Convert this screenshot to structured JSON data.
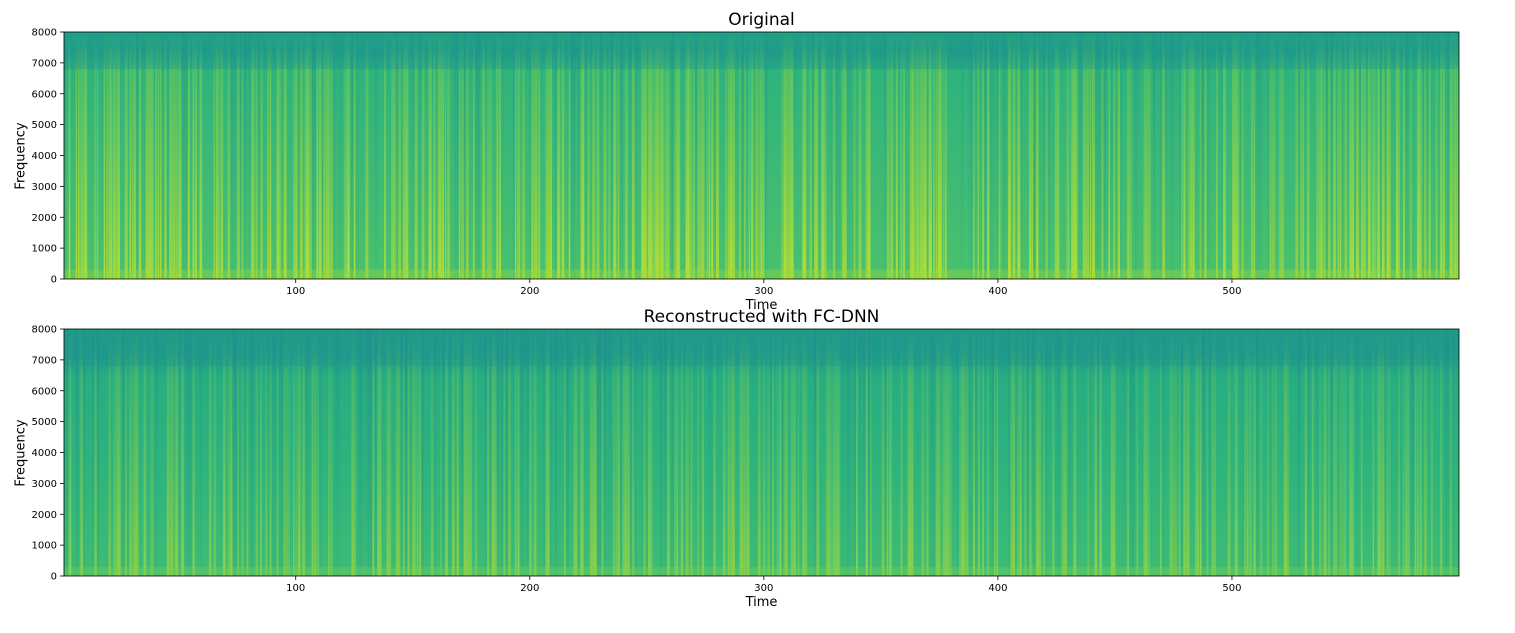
{
  "chart_data": [
    {
      "type": "heatmap",
      "title": "Original",
      "xlabel": "Time",
      "ylabel": "Frequency",
      "xlim": [
        1,
        597
      ],
      "ylim": [
        0,
        8000
      ],
      "x_ticks": [
        100,
        200,
        300,
        400,
        500
      ],
      "y_ticks": [
        0,
        1000,
        2000,
        3000,
        4000,
        5000,
        6000,
        7000,
        8000
      ],
      "colormap": "viridis",
      "grid": false
    },
    {
      "type": "heatmap",
      "title": "Reconstructed with FC-DNN",
      "xlabel": "Time",
      "ylabel": "Frequency",
      "xlim": [
        1,
        597
      ],
      "ylim": [
        0,
        8000
      ],
      "x_ticks": [
        100,
        200,
        300,
        400,
        500
      ],
      "y_ticks": [
        0,
        1000,
        2000,
        3000,
        4000,
        5000,
        6000,
        7000,
        8000
      ],
      "colormap": "viridis",
      "grid": false
    }
  ]
}
